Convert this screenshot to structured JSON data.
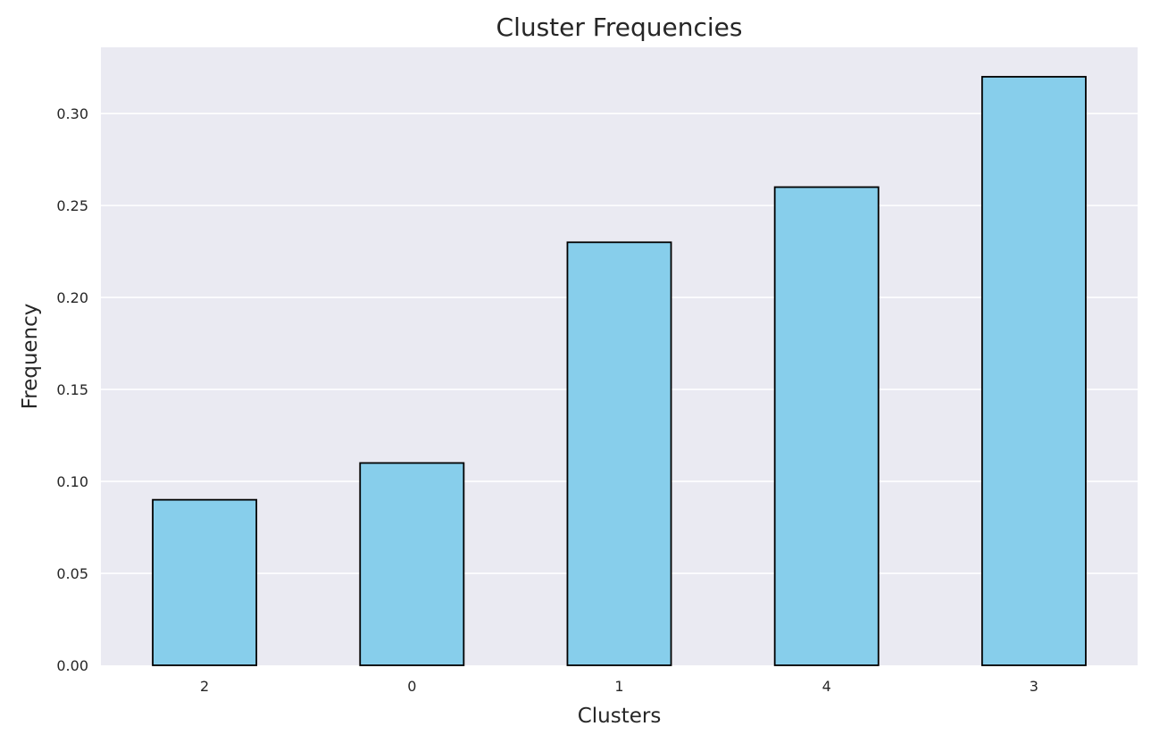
{
  "chart_data": {
    "type": "bar",
    "title": "Cluster Frequencies",
    "xlabel": "Clusters",
    "ylabel": "Frequency",
    "categories": [
      "2",
      "0",
      "1",
      "4",
      "3"
    ],
    "values": [
      0.09,
      0.11,
      0.23,
      0.26,
      0.32
    ],
    "ylim": [
      0,
      0.336
    ],
    "yticks": [
      0.0,
      0.05,
      0.1,
      0.15,
      0.2,
      0.25,
      0.3
    ],
    "ytick_labels": [
      "0.00",
      "0.05",
      "0.10",
      "0.15",
      "0.20",
      "0.25",
      "0.30"
    ],
    "grid": true,
    "colors": {
      "bar_fill": "#87ceeb",
      "bar_edge": "#000000",
      "plot_background": "#eaeaf2",
      "grid": "#ffffff"
    }
  }
}
